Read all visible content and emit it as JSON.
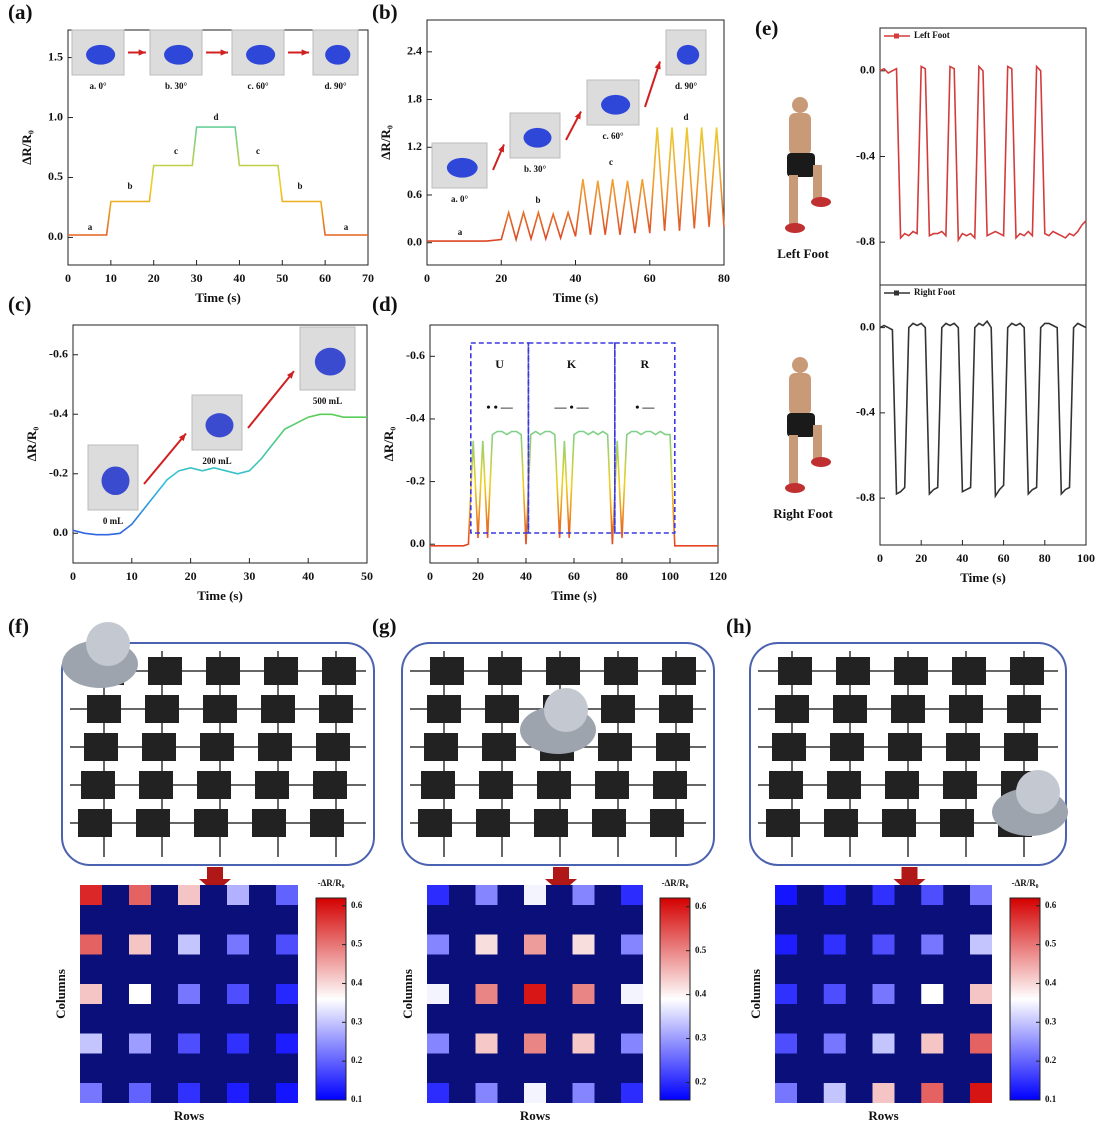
{
  "chart_data": [
    {
      "type": "line",
      "panel": "(a)",
      "xlabel": "Time (s)",
      "ylabel": "ΔR/R₀",
      "x": [
        0,
        9,
        10,
        19,
        20,
        29,
        30,
        39,
        40,
        49,
        50,
        59,
        60,
        70
      ],
      "values": [
        0.02,
        0.02,
        0.3,
        0.3,
        0.6,
        0.6,
        0.92,
        0.92,
        0.6,
        0.6,
        0.3,
        0.3,
        0.02,
        0.02
      ],
      "gradient": [
        "#e02020",
        "#f0d020",
        "#40d0c0",
        "#3040e0"
      ],
      "xlim": [
        0,
        70
      ],
      "ylim": [
        -0.23,
        1.73
      ],
      "xticks": [
        0,
        10,
        20,
        30,
        40,
        50,
        60,
        70
      ],
      "yticks": [
        {
          "value": 0,
          "label": "0.0"
        },
        0.5,
        {
          "value": 1,
          "label": "1.0"
        },
        1.5
      ],
      "annotations": [
        "a",
        "b",
        "c",
        "d",
        "c",
        "b",
        "a"
      ],
      "photos": [
        "a. 0°",
        "b. 30°",
        "c. 60°",
        "d. 90°"
      ]
    },
    {
      "type": "line",
      "panel": "(b)",
      "xlabel": "Time (s)",
      "ylabel": "ΔR/R₀",
      "x": [
        0,
        2,
        4,
        6,
        8,
        10,
        12,
        14,
        16,
        18,
        20,
        22,
        24,
        26,
        28,
        30,
        32,
        34,
        36,
        38,
        40,
        42,
        44,
        46,
        48,
        50,
        52,
        54,
        56,
        58,
        60,
        62,
        64,
        66,
        68,
        70,
        72,
        74,
        76,
        78,
        80
      ],
      "values": [
        0.02,
        0.02,
        0.02,
        0.02,
        0.02,
        0.02,
        0.02,
        0.02,
        0.02,
        0.03,
        0.04,
        0.38,
        0.04,
        0.38,
        0.05,
        0.38,
        0.05,
        0.36,
        0.06,
        0.38,
        0.08,
        0.8,
        0.1,
        0.78,
        0.1,
        0.8,
        0.1,
        0.78,
        0.12,
        0.8,
        0.12,
        1.45,
        0.15,
        1.45,
        0.15,
        1.45,
        0.18,
        1.45,
        0.2,
        1.45,
        0.2
      ],
      "gradient": [
        "#d42020",
        "#f0a030",
        "#e8e030",
        "#40d040"
      ],
      "xlim": [
        0,
        80
      ],
      "ylim": [
        -0.28,
        2.8
      ],
      "xticks": [
        0,
        20,
        40,
        60,
        80
      ],
      "yticks": [
        {
          "value": 0,
          "label": "0.0"
        },
        0.6,
        1.2,
        1.8,
        2.4
      ],
      "annotations": [
        "a",
        "b",
        "c",
        "d"
      ],
      "photos": [
        "a. 0°",
        "b. 30°",
        "c. 60°",
        "d. 90°"
      ]
    },
    {
      "type": "line",
      "panel": "(c)",
      "xlabel": "Time (s)",
      "ylabel": "ΔR/R₀",
      "x": [
        0,
        2,
        4,
        6,
        8,
        10,
        12,
        14,
        16,
        18,
        20,
        22,
        24,
        26,
        28,
        30,
        32,
        34,
        36,
        38,
        40,
        42,
        44,
        46,
        48,
        50
      ],
      "values": [
        -0.01,
        0,
        0.005,
        0.005,
        0,
        -0.03,
        -0.08,
        -0.13,
        -0.18,
        -0.21,
        -0.22,
        -0.21,
        -0.22,
        -0.21,
        -0.2,
        -0.21,
        -0.25,
        -0.3,
        -0.35,
        -0.37,
        -0.39,
        -0.4,
        -0.4,
        -0.39,
        -0.39,
        -0.39
      ],
      "gradient": [
        "#3030e0",
        "#30c0e0",
        "#60d040",
        "#e0e040"
      ],
      "xlim": [
        0,
        50
      ],
      "ylim": [
        0.1,
        -0.7
      ],
      "xticks": [
        0,
        10,
        20,
        30,
        40,
        50
      ],
      "yticks": [
        {
          "value": 0,
          "label": "0.0"
        },
        -0.2,
        -0.4,
        -0.6
      ],
      "photos": [
        "0 mL",
        "200 mL",
        "500 mL"
      ]
    },
    {
      "type": "line",
      "panel": "(d)",
      "xlabel": "Time (s)",
      "ylabel": "ΔR/R₀",
      "x": [
        0,
        2,
        4,
        6,
        8,
        10,
        12,
        14,
        16,
        18,
        20,
        22,
        24,
        26,
        28,
        30,
        32,
        34,
        36,
        38,
        40,
        42,
        44,
        46,
        48,
        50,
        52,
        54,
        56,
        58,
        60,
        62,
        64,
        66,
        68,
        70,
        72,
        74,
        76,
        78,
        80,
        82,
        84,
        86,
        88,
        90,
        92,
        94,
        96,
        98,
        100,
        102,
        104,
        106,
        108,
        110,
        112,
        114,
        116,
        118,
        120
      ],
      "values": [
        0.005,
        0.005,
        0.005,
        0.005,
        0.005,
        0.005,
        0.005,
        0.005,
        0,
        -0.33,
        -0.02,
        -0.33,
        -0.02,
        -0.35,
        -0.36,
        -0.36,
        -0.35,
        -0.36,
        -0.36,
        -0.35,
        0,
        -0.35,
        -0.36,
        -0.35,
        -0.36,
        -0.36,
        -0.35,
        -0.02,
        -0.33,
        -0.02,
        -0.35,
        -0.36,
        -0.36,
        -0.35,
        -0.36,
        -0.35,
        -0.36,
        -0.35,
        0,
        -0.33,
        -0.02,
        -0.35,
        -0.36,
        -0.36,
        -0.35,
        -0.36,
        -0.36,
        -0.35,
        -0.36,
        -0.35,
        -0.35,
        0.005,
        0.005,
        0.005,
        0.005,
        0.005,
        0.005,
        0.005,
        0.005,
        0.005,
        0.005
      ],
      "gradient": [
        "#e02020",
        "#f0d020",
        "#40d0c0",
        "#3040e0"
      ],
      "xlim": [
        0,
        120
      ],
      "ylim": [
        0.06,
        -0.7
      ],
      "xticks": [
        0,
        20,
        40,
        60,
        80,
        100,
        120
      ],
      "yticks": [
        {
          "value": 0,
          "label": "0.0"
        },
        -0.2,
        -0.4,
        -0.6
      ],
      "regions": [
        {
          "label": "U",
          "code": "• • —",
          "x": [
            17,
            41
          ]
        },
        {
          "label": "K",
          "code": "— • —",
          "x": [
            41,
            77
          ]
        },
        {
          "label": "R",
          "code": "• —",
          "x": [
            77,
            102
          ]
        }
      ]
    },
    {
      "type": "line",
      "panel": "(e)",
      "x": [
        0,
        2,
        4,
        6,
        8,
        10,
        12,
        14,
        16,
        18,
        20,
        22,
        24,
        26,
        28,
        30,
        32,
        34,
        36,
        38,
        40,
        42,
        44,
        46,
        48,
        50,
        52,
        54,
        56,
        58,
        60,
        62,
        64,
        66,
        68,
        70,
        72,
        74,
        76,
        78,
        80,
        82,
        84,
        86,
        88,
        90,
        92,
        94,
        96,
        98,
        100
      ],
      "series": [
        {
          "name": "Left Foot",
          "color": "#d43c3c",
          "values": [
            0.0,
            0.01,
            -0.01,
            0.0,
            0.01,
            -0.78,
            -0.76,
            -0.77,
            -0.75,
            -0.76,
            0.02,
            0.01,
            -0.77,
            -0.76,
            -0.76,
            -0.75,
            -0.77,
            0.02,
            0.01,
            -0.79,
            -0.76,
            -0.77,
            -0.76,
            -0.78,
            0.02,
            0.0,
            -0.77,
            -0.76,
            -0.75,
            -0.76,
            -0.77,
            0.02,
            0.01,
            -0.78,
            -0.76,
            -0.77,
            -0.75,
            -0.77,
            0.02,
            0.0,
            -0.76,
            -0.77,
            -0.75,
            -0.76,
            -0.77,
            -0.78,
            -0.76,
            -0.77,
            -0.75,
            -0.72,
            -0.7
          ]
        }
      ],
      "xlim": [
        0,
        100
      ],
      "ylim": [
        -1.0,
        0.2
      ],
      "yticks": [
        {
          "value": 0,
          "label": "0.0"
        },
        -0.4,
        -0.8
      ]
    },
    {
      "type": "line",
      "xlabel": "Time (s)",
      "x": [
        0,
        2,
        4,
        6,
        8,
        10,
        12,
        14,
        16,
        18,
        20,
        22,
        24,
        26,
        28,
        30,
        32,
        34,
        36,
        38,
        40,
        42,
        44,
        46,
        48,
        50,
        52,
        54,
        56,
        58,
        60,
        62,
        64,
        66,
        68,
        70,
        72,
        74,
        76,
        78,
        80,
        82,
        84,
        86,
        88,
        90,
        92,
        94,
        96,
        98,
        100
      ],
      "series": [
        {
          "name": "Right Foot",
          "color": "#333333",
          "values": [
            0.0,
            0.01,
            0.0,
            -0.01,
            -0.78,
            -0.77,
            -0.75,
            0.0,
            0.02,
            0.01,
            0.02,
            0.0,
            -0.78,
            -0.76,
            -0.75,
            0.0,
            0.02,
            0.01,
            0.02,
            0.0,
            -0.77,
            -0.76,
            -0.75,
            0.0,
            0.02,
            0.01,
            0.03,
            0.0,
            -0.79,
            -0.76,
            -0.74,
            0.0,
            0.02,
            0.01,
            0.02,
            0.0,
            -0.78,
            -0.76,
            -0.75,
            0.0,
            0.02,
            0.02,
            0.01,
            0.0,
            -0.78,
            -0.76,
            -0.75,
            0.0,
            0.02,
            0.01,
            0.0
          ]
        }
      ],
      "xlim": [
        0,
        100
      ],
      "ylim": [
        -1.02,
        0.2
      ],
      "xticks": [
        0,
        20,
        40,
        60,
        80,
        100
      ],
      "yticks": [
        {
          "value": 0,
          "label": "0.0"
        },
        -0.4,
        -0.8
      ]
    },
    {
      "type": "heatmap",
      "panel": "(f)",
      "xlabel": "Rows",
      "ylabel": "Columns",
      "colorbar_title": "-ΔR/R₀",
      "values": [
        [
          0.58,
          0.52,
          0.42,
          0.28,
          0.2
        ],
        [
          0.52,
          0.42,
          0.3,
          0.22,
          0.18
        ],
        [
          0.42,
          0.36,
          0.22,
          0.18,
          0.14
        ],
        [
          0.3,
          0.26,
          0.18,
          0.15,
          0.13
        ],
        [
          0.22,
          0.2,
          0.15,
          0.13,
          0.12
        ]
      ],
      "colorscale": [
        "#0000ff",
        "#ffffff",
        "#d40000"
      ],
      "zlim": [
        0.1,
        0.62
      ],
      "zticks": [
        0.1,
        0.2,
        0.3,
        0.4,
        0.5,
        0.6
      ]
    },
    {
      "type": "heatmap",
      "panel": "(g)",
      "xlabel": "Rows",
      "ylabel": "Columns",
      "colorbar_title": "-ΔR/R₀",
      "values": [
        [
          0.2,
          0.28,
          0.38,
          0.28,
          0.2
        ],
        [
          0.28,
          0.42,
          0.48,
          0.42,
          0.28
        ],
        [
          0.38,
          0.5,
          0.6,
          0.5,
          0.38
        ],
        [
          0.28,
          0.44,
          0.5,
          0.44,
          0.28
        ],
        [
          0.2,
          0.28,
          0.38,
          0.28,
          0.2
        ]
      ],
      "colorscale": [
        "#0000ff",
        "#ffffff",
        "#d40000"
      ],
      "zlim": [
        0.16,
        0.62
      ],
      "zticks": [
        0.2,
        0.3,
        0.4,
        0.5,
        0.6
      ]
    },
    {
      "type": "heatmap",
      "panel": "(h)",
      "xlabel": "Rows",
      "ylabel": "Columns",
      "colorbar_title": "-ΔR/R₀",
      "values": [
        [
          0.12,
          0.13,
          0.15,
          0.18,
          0.22
        ],
        [
          0.13,
          0.15,
          0.18,
          0.22,
          0.3
        ],
        [
          0.15,
          0.18,
          0.22,
          0.36,
          0.42
        ],
        [
          0.18,
          0.22,
          0.3,
          0.42,
          0.52
        ],
        [
          0.22,
          0.3,
          0.42,
          0.52,
          0.6
        ]
      ],
      "colorscale": [
        "#0000ff",
        "#ffffff",
        "#d40000"
      ],
      "zlim": [
        0.1,
        0.62
      ],
      "zticks": [
        0.1,
        0.2,
        0.3,
        0.4,
        0.5,
        0.6
      ]
    }
  ]
}
